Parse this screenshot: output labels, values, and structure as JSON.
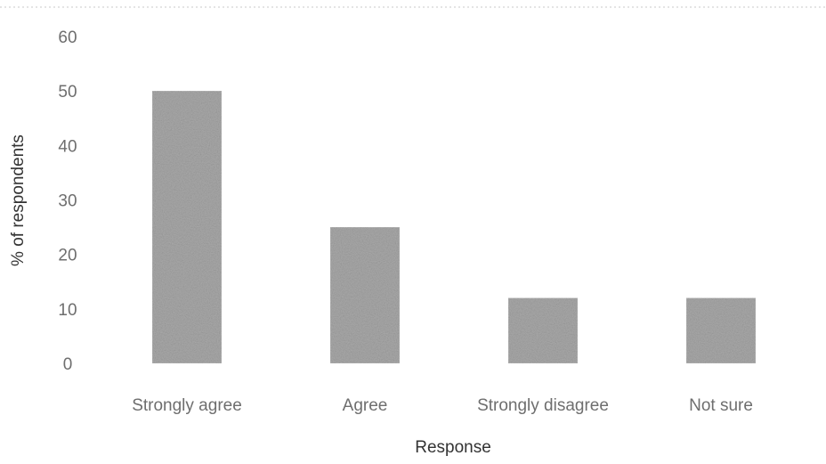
{
  "chart_data": {
    "type": "bar",
    "title": "",
    "xlabel": "Response",
    "ylabel": "% of respondents",
    "categories": [
      "Strongly agree",
      "Agree",
      "Strongly disagree",
      "Not sure"
    ],
    "values": [
      50,
      25,
      12,
      12
    ],
    "ylim": [
      0,
      60
    ],
    "yticks": [
      "0",
      "10",
      "20",
      "30",
      "40",
      "50",
      "60"
    ],
    "grid": false,
    "legend": "none",
    "bar_color": "#aaaaaa"
  }
}
